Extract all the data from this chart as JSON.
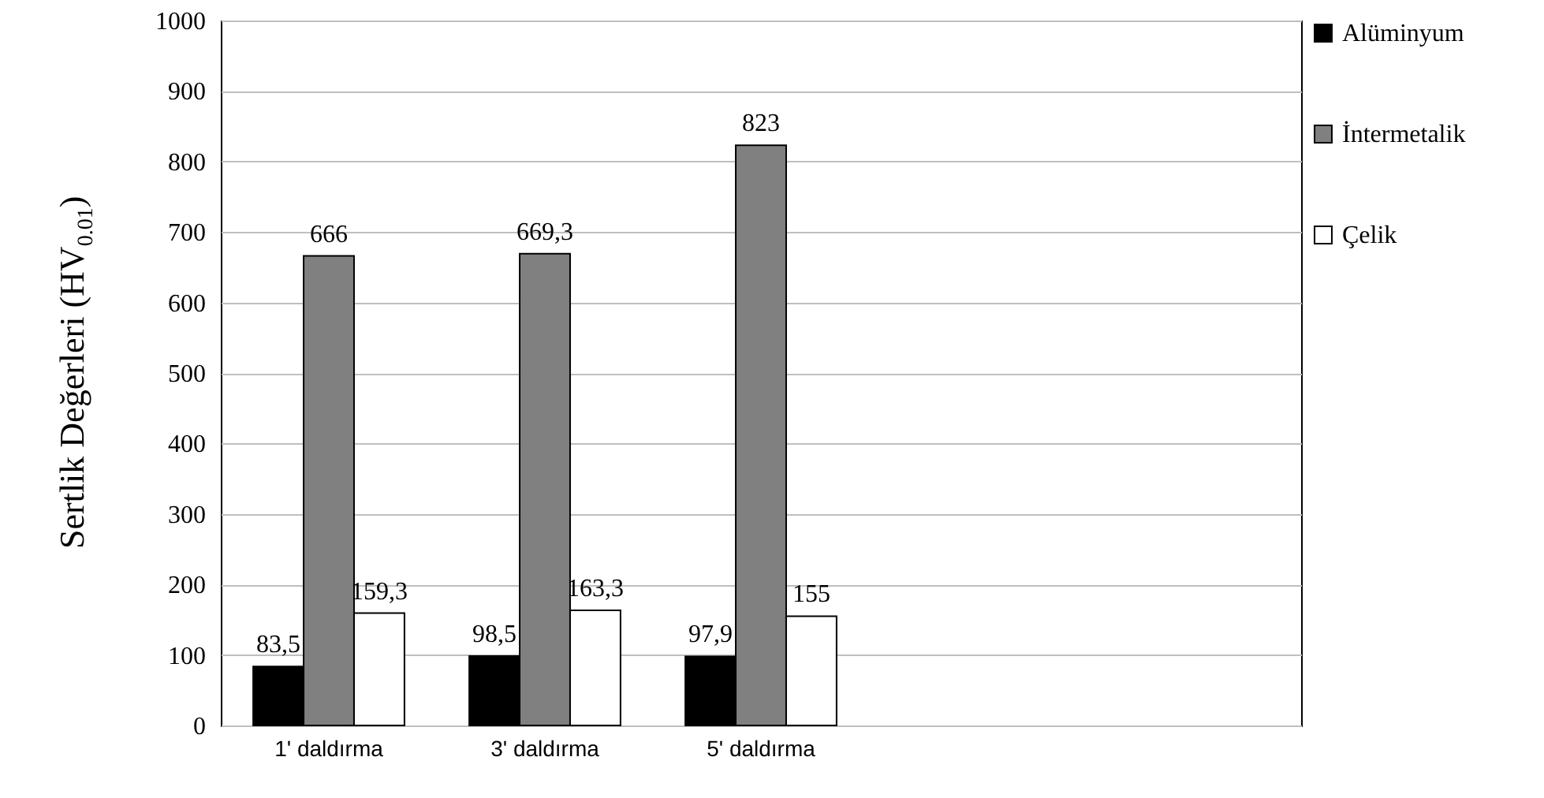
{
  "chart_data": {
    "type": "bar",
    "ylabel": "Sertlik Değerleri (HV$_{0.01}$)",
    "categories": [
      "1' daldırma",
      "3' daldırma",
      "5' daldırma",
      null,
      null
    ],
    "series": [
      {
        "name": "Alüminyum",
        "color": "#000000",
        "values": [
          83.5,
          98.5,
          97.9,
          null,
          null
        ],
        "value_labels": [
          "83,5",
          "98,5",
          "97,9",
          null,
          null
        ]
      },
      {
        "name": "İntermetalik",
        "color": "#808080",
        "values": [
          666,
          669.3,
          823,
          null,
          null
        ],
        "value_labels": [
          "666",
          "669,3",
          "823",
          null,
          null
        ]
      },
      {
        "name": "Çelik",
        "color": "#ffffff",
        "values": [
          159.3,
          163.3,
          155,
          null,
          null
        ],
        "value_labels": [
          "159,3",
          "163,3",
          "155",
          null,
          null
        ]
      }
    ],
    "ylim": [
      0,
      1000
    ],
    "yticks": [
      0,
      100,
      200,
      300,
      400,
      500,
      600,
      700,
      800,
      900,
      1000
    ],
    "grid": "y",
    "legend": "right"
  }
}
